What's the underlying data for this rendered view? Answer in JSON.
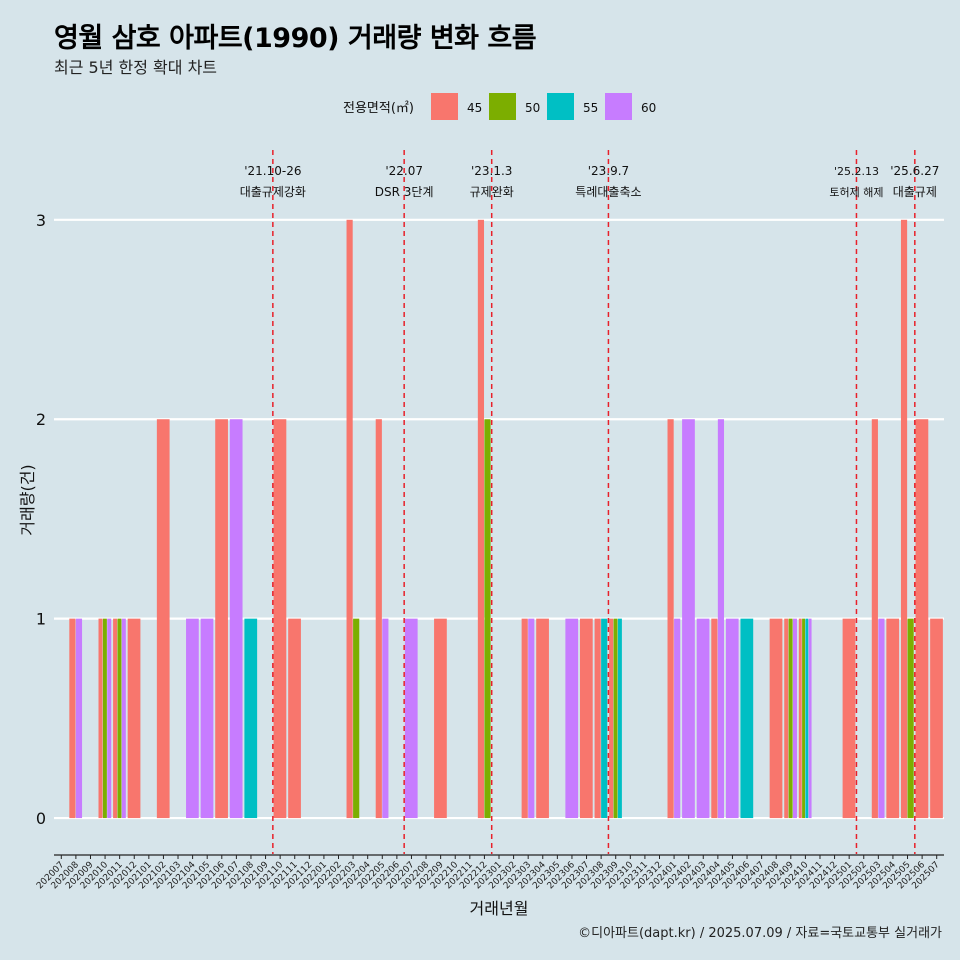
{
  "title": "영월 삼호 아파트(1990) 거래량 변화 흐름",
  "subtitle": "최근 5년 한정 확대 차트",
  "caption": "©디아파트(dapt.kr) / 2025.07.09 / 자료=국토교통부 실거래가",
  "chart_data": {
    "type": "bar",
    "position": "dodge",
    "xlabel": "거래년월",
    "ylabel": "거래량(건)",
    "ylim": [
      -0.13,
      3.35
    ],
    "yticks": [
      0,
      1,
      2,
      3
    ],
    "legend": {
      "title": "전용면적(㎡)",
      "placement": "top",
      "entries": [
        {
          "name": "45",
          "color": "#f8766d"
        },
        {
          "name": "50",
          "color": "#7cae00"
        },
        {
          "name": "55",
          "color": "#00bfc4"
        },
        {
          "name": "60",
          "color": "#c77cff"
        }
      ]
    },
    "categories": [
      "202007",
      "202008",
      "202009",
      "202010",
      "202011",
      "202012",
      "202101",
      "202102",
      "202103",
      "202104",
      "202105",
      "202106",
      "202107",
      "202108",
      "202109",
      "202110",
      "202111",
      "202112",
      "202201",
      "202202",
      "202203",
      "202204",
      "202205",
      "202206",
      "202207",
      "202208",
      "202209",
      "202210",
      "202211",
      "202212",
      "202301",
      "202302",
      "202303",
      "202304",
      "202305",
      "202306",
      "202307",
      "202308",
      "202309",
      "202310",
      "202311",
      "202312",
      "202401",
      "202402",
      "202403",
      "202404",
      "202405",
      "202406",
      "202407",
      "202408",
      "202409",
      "202410",
      "202411",
      "202412",
      "202501",
      "202502",
      "202503",
      "202504",
      "202505",
      "202506",
      "202507"
    ],
    "data": [
      {
        "month": "202008",
        "bars": [
          {
            "area": "45",
            "value": 1
          },
          {
            "area": "60",
            "value": 1
          }
        ]
      },
      {
        "month": "202010",
        "bars": [
          {
            "area": "45",
            "value": 1
          },
          {
            "area": "50",
            "value": 1
          },
          {
            "area": "60",
            "value": 1
          }
        ]
      },
      {
        "month": "202011",
        "bars": [
          {
            "area": "45",
            "value": 1
          },
          {
            "area": "50",
            "value": 1
          },
          {
            "area": "60",
            "value": 1
          }
        ]
      },
      {
        "month": "202012",
        "bars": [
          {
            "area": "45",
            "value": 1
          }
        ]
      },
      {
        "month": "202102",
        "bars": [
          {
            "area": "45",
            "value": 2
          }
        ]
      },
      {
        "month": "202104",
        "bars": [
          {
            "area": "60",
            "value": 1
          }
        ]
      },
      {
        "month": "202105",
        "bars": [
          {
            "area": "60",
            "value": 1
          }
        ]
      },
      {
        "month": "202106",
        "bars": [
          {
            "area": "45",
            "value": 2
          }
        ]
      },
      {
        "month": "202107",
        "bars": [
          {
            "area": "60",
            "value": 2
          }
        ]
      },
      {
        "month": "202108",
        "bars": [
          {
            "area": "55",
            "value": 1
          }
        ]
      },
      {
        "month": "202110",
        "bars": [
          {
            "area": "45",
            "value": 2
          }
        ]
      },
      {
        "month": "202111",
        "bars": [
          {
            "area": "45",
            "value": 1
          }
        ]
      },
      {
        "month": "202203",
        "bars": [
          {
            "area": "45",
            "value": 3
          },
          {
            "area": "50",
            "value": 1
          }
        ]
      },
      {
        "month": "202205",
        "bars": [
          {
            "area": "45",
            "value": 2
          },
          {
            "area": "60",
            "value": 1
          }
        ]
      },
      {
        "month": "202207",
        "bars": [
          {
            "area": "60",
            "value": 1
          }
        ]
      },
      {
        "month": "202209",
        "bars": [
          {
            "area": "45",
            "value": 1
          }
        ]
      },
      {
        "month": "202212",
        "bars": [
          {
            "area": "45",
            "value": 3
          },
          {
            "area": "50",
            "value": 2
          }
        ]
      },
      {
        "month": "202303",
        "bars": [
          {
            "area": "45",
            "value": 1
          },
          {
            "area": "60",
            "value": 1
          }
        ]
      },
      {
        "month": "202304",
        "bars": [
          {
            "area": "45",
            "value": 1
          }
        ]
      },
      {
        "month": "202306",
        "bars": [
          {
            "area": "60",
            "value": 1
          }
        ]
      },
      {
        "month": "202307",
        "bars": [
          {
            "area": "45",
            "value": 1
          }
        ]
      },
      {
        "month": "202308",
        "bars": [
          {
            "area": "45",
            "value": 1
          },
          {
            "area": "55",
            "value": 1
          }
        ]
      },
      {
        "month": "202309",
        "bars": [
          {
            "area": "45",
            "value": 1
          },
          {
            "area": "50",
            "value": 1
          },
          {
            "area": "55",
            "value": 1
          }
        ]
      },
      {
        "month": "202401",
        "bars": [
          {
            "area": "45",
            "value": 2
          },
          {
            "area": "60",
            "value": 1
          }
        ]
      },
      {
        "month": "202402",
        "bars": [
          {
            "area": "60",
            "value": 2
          }
        ]
      },
      {
        "month": "202403",
        "bars": [
          {
            "area": "60",
            "value": 1
          }
        ]
      },
      {
        "month": "202404",
        "bars": [
          {
            "area": "45",
            "value": 1
          },
          {
            "area": "60",
            "value": 2
          }
        ]
      },
      {
        "month": "202405",
        "bars": [
          {
            "area": "60",
            "value": 1
          }
        ]
      },
      {
        "month": "202406",
        "bars": [
          {
            "area": "55",
            "value": 1
          }
        ]
      },
      {
        "month": "202408",
        "bars": [
          {
            "area": "45",
            "value": 1
          }
        ]
      },
      {
        "month": "202409",
        "bars": [
          {
            "area": "45",
            "value": 1
          },
          {
            "area": "50",
            "value": 1
          },
          {
            "area": "60",
            "value": 1
          }
        ]
      },
      {
        "month": "202410",
        "bars": [
          {
            "area": "45",
            "value": 1
          },
          {
            "area": "50",
            "value": 1
          },
          {
            "area": "55",
            "value": 1
          },
          {
            "area": "60",
            "value": 1
          }
        ]
      },
      {
        "month": "202501",
        "bars": [
          {
            "area": "45",
            "value": 1
          }
        ]
      },
      {
        "month": "202503",
        "bars": [
          {
            "area": "45",
            "value": 2
          },
          {
            "area": "60",
            "value": 1
          }
        ]
      },
      {
        "month": "202504",
        "bars": [
          {
            "area": "45",
            "value": 1
          }
        ]
      },
      {
        "month": "202505",
        "bars": [
          {
            "area": "45",
            "value": 3
          },
          {
            "area": "50",
            "value": 1
          }
        ]
      },
      {
        "month": "202506",
        "bars": [
          {
            "area": "45",
            "value": 2
          }
        ]
      },
      {
        "month": "202507",
        "bars": [
          {
            "area": "45",
            "value": 1
          }
        ]
      }
    ],
    "annotations": [
      {
        "month": "202110",
        "date": "'21.10-26",
        "label": "대출규제강화"
      },
      {
        "month": "202207",
        "date": "'22.07",
        "label": "DSR 3단계"
      },
      {
        "month": "202301",
        "date": "'23.1.3",
        "label": "규제완화"
      },
      {
        "month": "202309",
        "date": "'23.9.7",
        "label": "특례대출축소"
      },
      {
        "month": "202502",
        "date": "'25.2.13",
        "label": "토허제 해제"
      },
      {
        "month": "202506",
        "date": "'25.6.27",
        "label": "대출규제"
      }
    ]
  }
}
